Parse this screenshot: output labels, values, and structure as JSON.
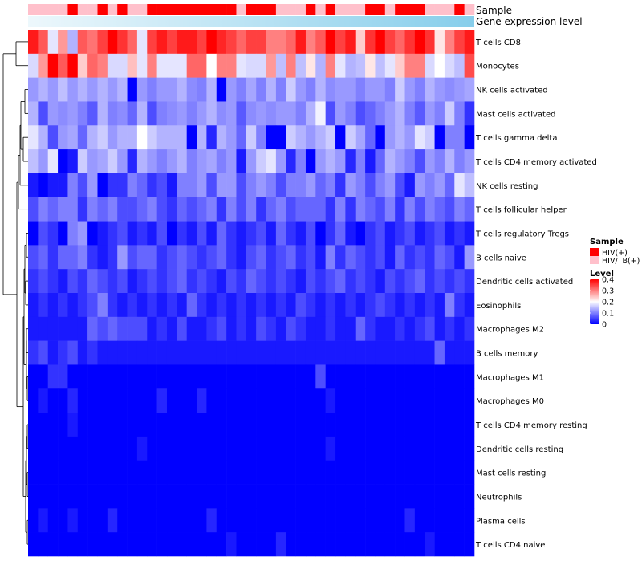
{
  "chart_data": {
    "type": "heatmap",
    "n_samples": 45,
    "annotation_tracks": [
      "Sample",
      "Gene expression level"
    ],
    "sample_groups": [
      "HIV/TB(+)",
      "HIV/TB(+)",
      "HIV/TB(+)",
      "HIV/TB(+)",
      "HIV(+)",
      "HIV/TB(+)",
      "HIV/TB(+)",
      "HIV(+)",
      "HIV/TB(+)",
      "HIV(+)",
      "HIV/TB(+)",
      "HIV/TB(+)",
      "HIV(+)",
      "HIV(+)",
      "HIV(+)",
      "HIV(+)",
      "HIV(+)",
      "HIV(+)",
      "HIV(+)",
      "HIV(+)",
      "HIV(+)",
      "HIV/TB(+)",
      "HIV(+)",
      "HIV(+)",
      "HIV(+)",
      "HIV/TB(+)",
      "HIV/TB(+)",
      "HIV/TB(+)",
      "HIV(+)",
      "HIV/TB(+)",
      "HIV(+)",
      "HIV/TB(+)",
      "HIV/TB(+)",
      "HIV/TB(+)",
      "HIV(+)",
      "HIV(+)",
      "HIV/TB(+)",
      "HIV(+)",
      "HIV(+)",
      "HIV(+)",
      "HIV/TB(+)",
      "HIV/TB(+)",
      "HIV/TB(+)",
      "HIV(+)",
      "HIV/TB(+)"
    ],
    "rows": [
      {
        "label": "T cells CD8",
        "values": [
          0.38,
          0.33,
          0.18,
          0.28,
          0.14,
          0.33,
          0.31,
          0.35,
          0.4,
          0.36,
          0.32,
          0.18,
          0.35,
          0.38,
          0.35,
          0.38,
          0.38,
          0.35,
          0.4,
          0.37,
          0.35,
          0.32,
          0.35,
          0.35,
          0.3,
          0.3,
          0.32,
          0.38,
          0.3,
          0.33,
          0.4,
          0.35,
          0.38,
          0.24,
          0.36,
          0.4,
          0.35,
          0.32,
          0.36,
          0.4,
          0.36,
          0.22,
          0.3,
          0.35,
          0.38
        ]
      },
      {
        "label": "Monocytes",
        "values": [
          0.17,
          0.28,
          0.4,
          0.33,
          0.4,
          0.24,
          0.32,
          0.3,
          0.17,
          0.17,
          0.25,
          0.18,
          0.3,
          0.18,
          0.18,
          0.18,
          0.32,
          0.32,
          0.2,
          0.3,
          0.3,
          0.18,
          0.17,
          0.17,
          0.28,
          0.15,
          0.3,
          0.15,
          0.22,
          0.14,
          0.3,
          0.18,
          0.14,
          0.15,
          0.22,
          0.15,
          0.18,
          0.24,
          0.3,
          0.3,
          0.17,
          0.2,
          0.17,
          0.15,
          0.34
        ]
      },
      {
        "label": "NK cells activated",
        "values": [
          0.12,
          0.14,
          0.12,
          0.15,
          0.12,
          0.14,
          0.12,
          0.14,
          0.12,
          0.14,
          0.0,
          0.12,
          0.1,
          0.12,
          0.12,
          0.14,
          0.11,
          0.1,
          0.14,
          0.0,
          0.12,
          0.1,
          0.13,
          0.1,
          0.14,
          0.1,
          0.16,
          0.12,
          0.1,
          0.14,
          0.11,
          0.12,
          0.12,
          0.1,
          0.12,
          0.12,
          0.1,
          0.16,
          0.12,
          0.1,
          0.14,
          0.12,
          0.11,
          0.12,
          0.13
        ]
      },
      {
        "label": "Mast cells activated",
        "values": [
          0.14,
          0.06,
          0.12,
          0.11,
          0.12,
          0.1,
          0.07,
          0.14,
          0.1,
          0.11,
          0.08,
          0.14,
          0.06,
          0.1,
          0.11,
          0.12,
          0.1,
          0.12,
          0.14,
          0.11,
          0.12,
          0.07,
          0.11,
          0.12,
          0.11,
          0.12,
          0.12,
          0.1,
          0.14,
          0.19,
          0.06,
          0.12,
          0.1,
          0.06,
          0.08,
          0.1,
          0.12,
          0.14,
          0.1,
          0.07,
          0.12,
          0.1,
          0.16,
          0.1,
          0.04
        ]
      },
      {
        "label": "T cells gamma delta",
        "values": [
          0.18,
          0.14,
          0.06,
          0.12,
          0.13,
          0.08,
          0.14,
          0.16,
          0.12,
          0.14,
          0.14,
          0.2,
          0.16,
          0.14,
          0.14,
          0.14,
          0.0,
          0.14,
          0.03,
          0.14,
          0.12,
          0.08,
          0.16,
          0.1,
          0.0,
          0.0,
          0.16,
          0.14,
          0.12,
          0.14,
          0.16,
          0.0,
          0.16,
          0.13,
          0.08,
          0.0,
          0.12,
          0.14,
          0.12,
          0.18,
          0.16,
          0.0,
          0.1,
          0.1,
          0.0
        ]
      },
      {
        "label": "T cells CD4 memory activated",
        "values": [
          0.15,
          0.12,
          0.18,
          0.0,
          0.02,
          0.16,
          0.12,
          0.13,
          0.16,
          0.12,
          0.03,
          0.14,
          0.12,
          0.1,
          0.12,
          0.14,
          0.1,
          0.12,
          0.13,
          0.1,
          0.12,
          0.02,
          0.12,
          0.16,
          0.18,
          0.12,
          0.03,
          0.1,
          0.0,
          0.12,
          0.14,
          0.12,
          0.03,
          0.1,
          0.02,
          0.08,
          0.14,
          0.12,
          0.1,
          0.06,
          0.12,
          0.1,
          0.14,
          0.1,
          0.12
        ]
      },
      {
        "label": "NK cells resting",
        "values": [
          0.02,
          0.0,
          0.02,
          0.02,
          0.1,
          0.06,
          0.12,
          0.0,
          0.04,
          0.04,
          0.1,
          0.08,
          0.04,
          0.06,
          0.02,
          0.1,
          0.1,
          0.12,
          0.06,
          0.12,
          0.12,
          0.06,
          0.1,
          0.12,
          0.1,
          0.06,
          0.1,
          0.1,
          0.12,
          0.08,
          0.1,
          0.04,
          0.12,
          0.1,
          0.06,
          0.1,
          0.12,
          0.06,
          0.02,
          0.12,
          0.1,
          0.12,
          0.08,
          0.18,
          0.15
        ]
      },
      {
        "label": "T cells follicular helper",
        "values": [
          0.06,
          0.1,
          0.08,
          0.1,
          0.1,
          0.04,
          0.1,
          0.08,
          0.1,
          0.06,
          0.06,
          0.08,
          0.1,
          0.06,
          0.04,
          0.08,
          0.06,
          0.08,
          0.1,
          0.04,
          0.1,
          0.06,
          0.1,
          0.04,
          0.08,
          0.1,
          0.06,
          0.08,
          0.08,
          0.08,
          0.04,
          0.1,
          0.04,
          0.1,
          0.08,
          0.06,
          0.1,
          0.04,
          0.1,
          0.06,
          0.1,
          0.08,
          0.06,
          0.1,
          0.08
        ]
      },
      {
        "label": "T cells regulatory  Tregs",
        "values": [
          0.0,
          0.06,
          0.04,
          0.0,
          0.1,
          0.12,
          0.0,
          0.02,
          0.04,
          0.06,
          0.02,
          0.04,
          0.02,
          0.06,
          0.0,
          0.04,
          0.02,
          0.06,
          0.02,
          0.08,
          0.04,
          0.02,
          0.04,
          0.06,
          0.02,
          0.08,
          0.04,
          0.02,
          0.06,
          0.0,
          0.04,
          0.08,
          0.02,
          0.0,
          0.04,
          0.06,
          0.02,
          0.04,
          0.06,
          0.02,
          0.04,
          0.06,
          0.02,
          0.04,
          0.02
        ]
      },
      {
        "label": "B cells naive",
        "values": [
          0.06,
          0.08,
          0.04,
          0.08,
          0.08,
          0.1,
          0.04,
          0.02,
          0.04,
          0.12,
          0.06,
          0.08,
          0.08,
          0.04,
          0.06,
          0.08,
          0.06,
          0.04,
          0.06,
          0.08,
          0.04,
          0.02,
          0.06,
          0.08,
          0.04,
          0.06,
          0.08,
          0.04,
          0.06,
          0.02,
          0.1,
          0.04,
          0.08,
          0.06,
          0.04,
          0.06,
          0.02,
          0.08,
          0.04,
          0.06,
          0.04,
          0.08,
          0.06,
          0.02,
          0.12
        ]
      },
      {
        "label": "Dendritic cells activated",
        "values": [
          0.04,
          0.06,
          0.04,
          0.02,
          0.06,
          0.04,
          0.08,
          0.06,
          0.04,
          0.06,
          0.02,
          0.04,
          0.06,
          0.04,
          0.06,
          0.08,
          0.04,
          0.06,
          0.04,
          0.02,
          0.06,
          0.04,
          0.08,
          0.06,
          0.04,
          0.06,
          0.04,
          0.02,
          0.06,
          0.04,
          0.06,
          0.08,
          0.04,
          0.06,
          0.04,
          0.02,
          0.06,
          0.04,
          0.06,
          0.08,
          0.04,
          0.06,
          0.04,
          0.06,
          0.04
        ]
      },
      {
        "label": "Eosinophils",
        "values": [
          0.02,
          0.04,
          0.02,
          0.04,
          0.02,
          0.04,
          0.06,
          0.1,
          0.04,
          0.02,
          0.04,
          0.02,
          0.04,
          0.02,
          0.04,
          0.02,
          0.08,
          0.04,
          0.02,
          0.04,
          0.02,
          0.04,
          0.02,
          0.04,
          0.02,
          0.04,
          0.02,
          0.06,
          0.04,
          0.02,
          0.04,
          0.02,
          0.04,
          0.02,
          0.04,
          0.06,
          0.04,
          0.02,
          0.04,
          0.02,
          0.04,
          0.02,
          0.1,
          0.04,
          0.02
        ]
      },
      {
        "label": "Macrophages M2",
        "values": [
          0.02,
          0.02,
          0.02,
          0.02,
          0.02,
          0.02,
          0.08,
          0.06,
          0.08,
          0.06,
          0.06,
          0.06,
          0.02,
          0.04,
          0.02,
          0.06,
          0.02,
          0.02,
          0.04,
          0.06,
          0.02,
          0.04,
          0.02,
          0.06,
          0.04,
          0.02,
          0.06,
          0.04,
          0.02,
          0.02,
          0.04,
          0.02,
          0.02,
          0.08,
          0.04,
          0.02,
          0.02,
          0.04,
          0.02,
          0.04,
          0.06,
          0.02,
          0.04,
          0.02,
          0.04
        ]
      },
      {
        "label": "B cells memory",
        "values": [
          0.04,
          0.06,
          0.02,
          0.04,
          0.06,
          0.02,
          0.04,
          0.02,
          0.02,
          0.02,
          0.02,
          0.02,
          0.02,
          0.02,
          0.02,
          0.02,
          0.02,
          0.02,
          0.02,
          0.02,
          0.02,
          0.02,
          0.02,
          0.02,
          0.02,
          0.02,
          0.02,
          0.02,
          0.02,
          0.02,
          0.02,
          0.02,
          0.02,
          0.02,
          0.02,
          0.02,
          0.02,
          0.02,
          0.02,
          0.02,
          0.02,
          0.08,
          0.02,
          0.02,
          0.02
        ]
      },
      {
        "label": "Macrophages M1",
        "values": [
          0.0,
          0.0,
          0.04,
          0.04,
          0.0,
          0.0,
          0.0,
          0.0,
          0.0,
          0.0,
          0.0,
          0.0,
          0.0,
          0.0,
          0.0,
          0.0,
          0.0,
          0.0,
          0.0,
          0.0,
          0.0,
          0.0,
          0.0,
          0.0,
          0.0,
          0.0,
          0.0,
          0.0,
          0.0,
          0.06,
          0.0,
          0.0,
          0.0,
          0.0,
          0.0,
          0.0,
          0.0,
          0.0,
          0.0,
          0.0,
          0.0,
          0.0,
          0.0,
          0.0,
          0.0
        ]
      },
      {
        "label": "Macrophages M0",
        "values": [
          0.0,
          0.02,
          0.0,
          0.0,
          0.03,
          0.0,
          0.0,
          0.0,
          0.0,
          0.0,
          0.0,
          0.0,
          0.0,
          0.03,
          0.0,
          0.0,
          0.0,
          0.03,
          0.0,
          0.0,
          0.0,
          0.0,
          0.0,
          0.0,
          0.0,
          0.0,
          0.0,
          0.0,
          0.0,
          0.0,
          0.02,
          0.0,
          0.0,
          0.0,
          0.0,
          0.0,
          0.0,
          0.0,
          0.0,
          0.0,
          0.0,
          0.0,
          0.0,
          0.0,
          0.0
        ]
      },
      {
        "label": "T cells CD4 memory resting",
        "values": [
          0.0,
          0.0,
          0.0,
          0.0,
          0.02,
          0.0,
          0.0,
          0.0,
          0.0,
          0.0,
          0.0,
          0.0,
          0.0,
          0.0,
          0.0,
          0.0,
          0.0,
          0.0,
          0.0,
          0.0,
          0.0,
          0.0,
          0.0,
          0.0,
          0.0,
          0.0,
          0.0,
          0.0,
          0.0,
          0.0,
          0.0,
          0.0,
          0.0,
          0.0,
          0.0,
          0.0,
          0.0,
          0.0,
          0.0,
          0.0,
          0.0,
          0.0,
          0.0,
          0.0,
          0.0
        ]
      },
      {
        "label": "Dendritic cells resting",
        "values": [
          0.0,
          0.0,
          0.0,
          0.0,
          0.0,
          0.0,
          0.0,
          0.0,
          0.0,
          0.0,
          0.0,
          0.02,
          0.0,
          0.0,
          0.0,
          0.0,
          0.0,
          0.0,
          0.0,
          0.0,
          0.0,
          0.0,
          0.0,
          0.0,
          0.0,
          0.0,
          0.0,
          0.0,
          0.0,
          0.0,
          0.02,
          0.0,
          0.0,
          0.0,
          0.0,
          0.0,
          0.0,
          0.0,
          0.0,
          0.0,
          0.0,
          0.0,
          0.0,
          0.0,
          0.0
        ]
      },
      {
        "label": "Mast cells resting",
        "values": [
          0.0,
          0.0,
          0.0,
          0.0,
          0.0,
          0.0,
          0.0,
          0.0,
          0.0,
          0.0,
          0.0,
          0.0,
          0.0,
          0.0,
          0.0,
          0.0,
          0.0,
          0.0,
          0.0,
          0.0,
          0.0,
          0.0,
          0.0,
          0.0,
          0.0,
          0.0,
          0.0,
          0.0,
          0.0,
          0.0,
          0.0,
          0.0,
          0.0,
          0.0,
          0.0,
          0.0,
          0.0,
          0.0,
          0.0,
          0.0,
          0.0,
          0.0,
          0.0,
          0.0,
          0.0
        ]
      },
      {
        "label": "Neutrophils",
        "values": [
          0.0,
          0.0,
          0.0,
          0.0,
          0.0,
          0.0,
          0.0,
          0.0,
          0.0,
          0.0,
          0.0,
          0.0,
          0.0,
          0.0,
          0.0,
          0.0,
          0.0,
          0.0,
          0.0,
          0.0,
          0.0,
          0.0,
          0.0,
          0.0,
          0.0,
          0.0,
          0.0,
          0.0,
          0.0,
          0.0,
          0.0,
          0.0,
          0.0,
          0.0,
          0.0,
          0.0,
          0.0,
          0.0,
          0.0,
          0.0,
          0.0,
          0.0,
          0.0,
          0.0,
          0.0
        ]
      },
      {
        "label": "Plasma cells",
        "values": [
          0.0,
          0.02,
          0.0,
          0.0,
          0.02,
          0.0,
          0.0,
          0.0,
          0.03,
          0.0,
          0.0,
          0.0,
          0.0,
          0.0,
          0.0,
          0.0,
          0.0,
          0.0,
          0.03,
          0.0,
          0.0,
          0.0,
          0.0,
          0.0,
          0.0,
          0.0,
          0.0,
          0.0,
          0.0,
          0.0,
          0.0,
          0.0,
          0.0,
          0.0,
          0.0,
          0.0,
          0.0,
          0.0,
          0.03,
          0.0,
          0.0,
          0.0,
          0.0,
          0.0,
          0.0
        ]
      },
      {
        "label": "T cells CD4 naive",
        "values": [
          0.0,
          0.0,
          0.0,
          0.0,
          0.0,
          0.0,
          0.0,
          0.0,
          0.0,
          0.0,
          0.0,
          0.0,
          0.0,
          0.0,
          0.0,
          0.0,
          0.0,
          0.0,
          0.0,
          0.0,
          0.02,
          0.0,
          0.0,
          0.0,
          0.0,
          0.03,
          0.0,
          0.0,
          0.0,
          0.0,
          0.0,
          0.0,
          0.0,
          0.0,
          0.0,
          0.0,
          0.0,
          0.0,
          0.0,
          0.0,
          0.02,
          0.0,
          0.0,
          0.0,
          0.0
        ]
      }
    ],
    "legend_sample": {
      "title": "Sample",
      "items": [
        {
          "label": "HIV(+)",
          "color": "#ff0000"
        },
        {
          "label": "HIV/TB(+)",
          "color": "#ffc0cb"
        }
      ]
    },
    "legend_level": {
      "title": "Level",
      "min": 0,
      "max": 0.4,
      "ticks": [
        0.4,
        0.3,
        0.2,
        0.1,
        0
      ],
      "tick_labels": [
        "0.4",
        "0.3",
        "0.2",
        "0.1",
        "0"
      ],
      "color_low": "#0000ff",
      "color_mid": "#ffffff",
      "color_high": "#ff0000",
      "mid_value": 0.2
    },
    "expression_bar_color": "#87ceeb"
  }
}
